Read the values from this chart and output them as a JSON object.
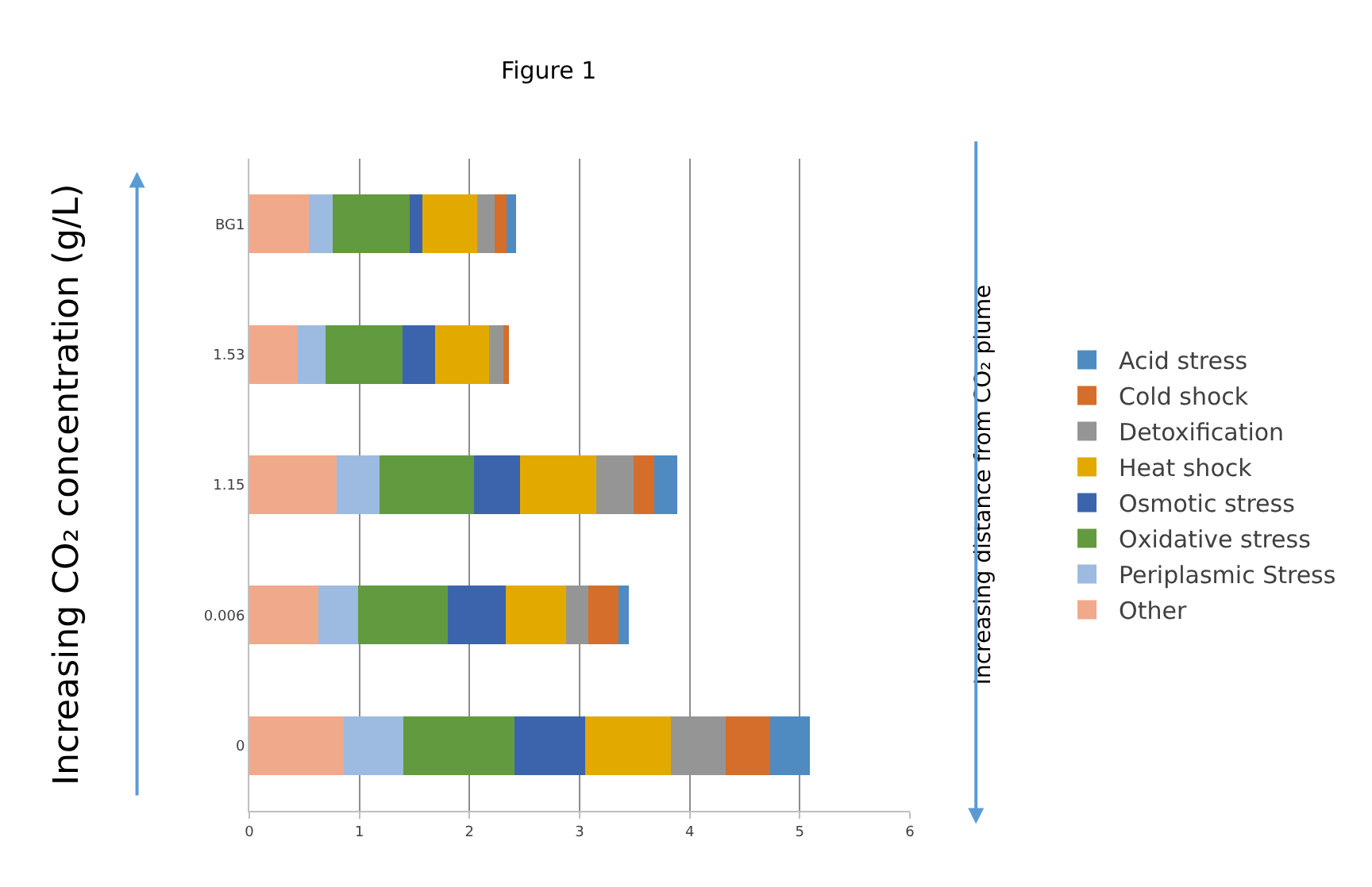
{
  "chart_data": {
    "type": "bar",
    "orientation": "horizontal",
    "stacked": true,
    "title": "Figure 1",
    "categories": [
      "BG1",
      "1.53",
      "1.15",
      "0.006",
      "0"
    ],
    "series": [
      {
        "name": "Other",
        "color": "#f1a98b",
        "values": [
          0.54,
          0.44,
          0.79,
          0.63,
          0.86
        ]
      },
      {
        "name": "Periplasmic Stress",
        "color": "#9dbbe0",
        "values": [
          0.22,
          0.25,
          0.39,
          0.36,
          0.54
        ]
      },
      {
        "name": "Oxidative stress",
        "color": "#629a40",
        "values": [
          0.7,
          0.7,
          0.86,
          0.81,
          1.01
        ]
      },
      {
        "name": "Osmotic stress",
        "color": "#3b64ad",
        "values": [
          0.11,
          0.3,
          0.42,
          0.53,
          0.64
        ]
      },
      {
        "name": "Heat shock",
        "color": "#e2aa00",
        "values": [
          0.5,
          0.49,
          0.69,
          0.55,
          0.78
        ]
      },
      {
        "name": "Detoxification",
        "color": "#959595",
        "values": [
          0.16,
          0.13,
          0.34,
          0.2,
          0.5
        ]
      },
      {
        "name": "Cold shock",
        "color": "#d46e2a",
        "values": [
          0.11,
          0.05,
          0.19,
          0.27,
          0.4
        ]
      },
      {
        "name": "Acid stress",
        "color": "#4f8bc0",
        "values": [
          0.08,
          0.0,
          0.21,
          0.1,
          0.36
        ]
      }
    ],
    "xlim": [
      0,
      6
    ],
    "xticks": [
      0,
      1,
      2,
      3,
      4,
      5,
      6
    ],
    "grid": "x",
    "legend": "right",
    "annotations": [
      "Increasing CO₂ concentration (g/L)",
      "Increasing distance from CO₂ plume"
    ]
  }
}
